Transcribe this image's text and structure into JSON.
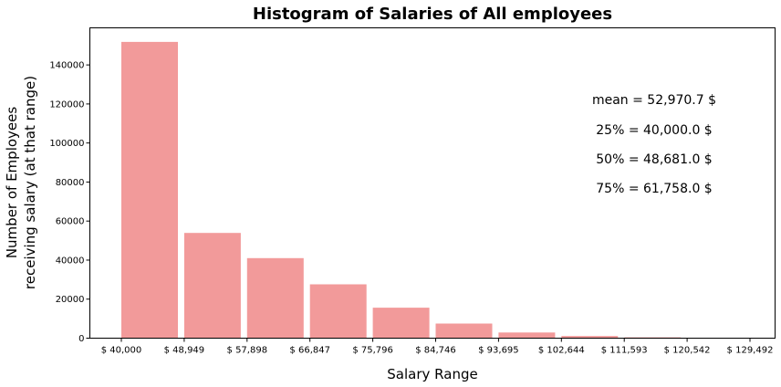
{
  "chart_data": {
    "type": "bar",
    "title": "Histogram of Salaries of All employees",
    "xlabel": "Salary Range",
    "ylabel_line1": "Number of Employees",
    "ylabel_line2": "receiving salary (at that range)",
    "bar_color": "#f29a9a",
    "x_tick_labels": [
      "$ 40,000",
      "$ 48,949",
      "$ 57,898",
      "$ 66,847",
      "$ 75,796",
      "$ 84,746",
      "$ 93,695",
      "$ 102,644",
      "$ 111,593",
      "$ 120,542",
      "$ 129,492"
    ],
    "values": [
      151800,
      53900,
      41000,
      27600,
      15600,
      7500,
      2900,
      1100,
      400,
      150
    ],
    "y_ticks": [
      0,
      20000,
      40000,
      60000,
      80000,
      100000,
      120000,
      140000
    ],
    "ylim": [
      0,
      159000
    ],
    "grid": false,
    "annotations": [
      "mean = 52,970.7 $",
      "25% = 40,000.0 $",
      "50% = 48,681.0 $",
      "75% = 61,758.0 $"
    ]
  }
}
